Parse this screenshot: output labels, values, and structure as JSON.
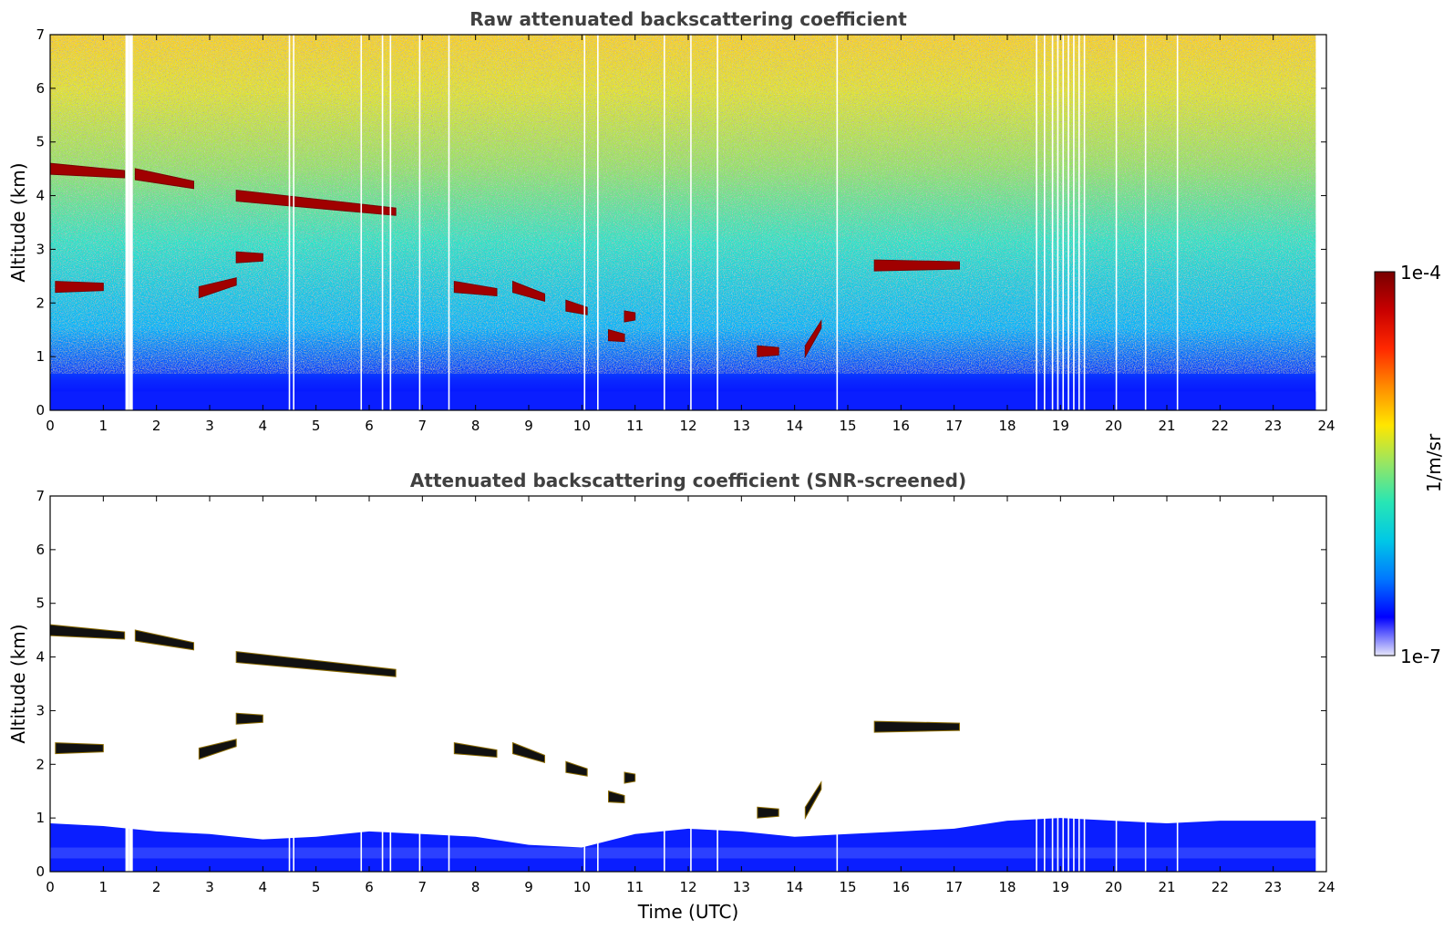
{
  "chart_data": [
    {
      "type": "heatmap",
      "title": "Raw attenuated backscattering coefficient",
      "xlabel": "",
      "ylabel": "Altitude (km)",
      "xlim": [
        0,
        24
      ],
      "ylim": [
        0,
        7
      ],
      "xticks": [
        "0",
        "1",
        "2",
        "3",
        "4",
        "5",
        "6",
        "7",
        "8",
        "9",
        "10",
        "11",
        "12",
        "13",
        "14",
        "15",
        "16",
        "17",
        "18",
        "19",
        "20",
        "21",
        "22",
        "23",
        "24"
      ],
      "yticks": [
        "0",
        "1",
        "2",
        "3",
        "4",
        "5",
        "6",
        "7"
      ],
      "data_extent_hours": [
        0,
        23.8
      ],
      "gap_columns_hours": [
        1.45,
        1.52,
        4.5,
        4.58,
        5.85,
        6.25,
        6.4,
        6.95,
        7.5,
        10.05,
        10.3,
        11.55,
        12.05,
        12.55,
        14.8,
        18.55,
        18.7,
        18.85,
        18.95,
        19.05,
        19.15,
        19.25,
        19.35,
        19.45,
        20.05,
        20.6,
        21.2
      ],
      "cloud_layers": [
        {
          "t": [
            0.0,
            1.4
          ],
          "alt_km": [
            4.5,
            4.4
          ],
          "level": "high"
        },
        {
          "t": [
            1.6,
            2.7
          ],
          "alt_km": [
            4.4,
            4.2
          ],
          "level": "high"
        },
        {
          "t": [
            3.5,
            6.5
          ],
          "alt_km": [
            4.0,
            3.7
          ],
          "level": "high"
        },
        {
          "t": [
            0.1,
            1.0
          ],
          "alt_km": [
            2.3,
            2.3
          ],
          "level": "high"
        },
        {
          "t": [
            2.8,
            3.5
          ],
          "alt_km": [
            2.2,
            2.4
          ],
          "level": "high"
        },
        {
          "t": [
            3.5,
            4.0
          ],
          "alt_km": [
            2.85,
            2.85
          ],
          "level": "high"
        },
        {
          "t": [
            7.6,
            8.4
          ],
          "alt_km": [
            2.3,
            2.2
          ],
          "level": "high"
        },
        {
          "t": [
            8.7,
            9.3
          ],
          "alt_km": [
            2.3,
            2.1
          ],
          "level": "high"
        },
        {
          "t": [
            9.7,
            10.1
          ],
          "alt_km": [
            1.95,
            1.85
          ],
          "level": "high"
        },
        {
          "t": [
            10.5,
            10.8
          ],
          "alt_km": [
            1.4,
            1.35
          ],
          "level": "high"
        },
        {
          "t": [
            10.8,
            11.0
          ],
          "alt_km": [
            1.75,
            1.75
          ],
          "level": "high"
        },
        {
          "t": [
            13.3,
            13.7
          ],
          "alt_km": [
            1.1,
            1.1
          ],
          "level": "high"
        },
        {
          "t": [
            14.2,
            14.5
          ],
          "alt_km": [
            1.1,
            1.6
          ],
          "level": "high"
        },
        {
          "t": [
            15.5,
            17.1
          ],
          "alt_km": [
            2.7,
            2.7
          ],
          "level": "high"
        }
      ]
    },
    {
      "type": "heatmap",
      "title": "Attenuated backscattering coefficient (SNR-screened)",
      "xlabel": "Time (UTC)",
      "ylabel": "Altitude (km)",
      "xlim": [
        0,
        24
      ],
      "ylim": [
        0,
        7
      ],
      "xticks": [
        "0",
        "1",
        "2",
        "3",
        "4",
        "5",
        "6",
        "7",
        "8",
        "9",
        "10",
        "11",
        "12",
        "13",
        "14",
        "15",
        "16",
        "17",
        "18",
        "19",
        "20",
        "21",
        "22",
        "23",
        "24"
      ],
      "yticks": [
        "0",
        "1",
        "2",
        "3",
        "4",
        "5",
        "6",
        "7"
      ],
      "boundary_layer_top_km": [
        [
          0,
          0.9
        ],
        [
          1,
          0.85
        ],
        [
          2,
          0.75
        ],
        [
          3,
          0.7
        ],
        [
          4,
          0.6
        ],
        [
          5,
          0.65
        ],
        [
          6,
          0.75
        ],
        [
          7,
          0.7
        ],
        [
          8,
          0.65
        ],
        [
          9,
          0.5
        ],
        [
          10,
          0.45
        ],
        [
          11,
          0.7
        ],
        [
          12,
          0.8
        ],
        [
          13,
          0.75
        ],
        [
          14,
          0.65
        ],
        [
          15,
          0.7
        ],
        [
          16,
          0.75
        ],
        [
          17,
          0.8
        ],
        [
          18,
          0.95
        ],
        [
          19,
          1.0
        ],
        [
          20,
          0.95
        ],
        [
          21,
          0.9
        ],
        [
          22,
          0.95
        ],
        [
          23,
          0.95
        ],
        [
          23.8,
          0.95
        ]
      ]
    }
  ],
  "colorbar": {
    "label": "1/m/sr",
    "max_label": "1e-4",
    "min_label": "1e-7",
    "scale": "log",
    "colormap": [
      "#e6e6fa",
      "#0000ff",
      "#0078ff",
      "#00c8e6",
      "#28e6b4",
      "#96e664",
      "#ffe600",
      "#ff8c00",
      "#ff2800",
      "#c80000",
      "#780000"
    ]
  }
}
